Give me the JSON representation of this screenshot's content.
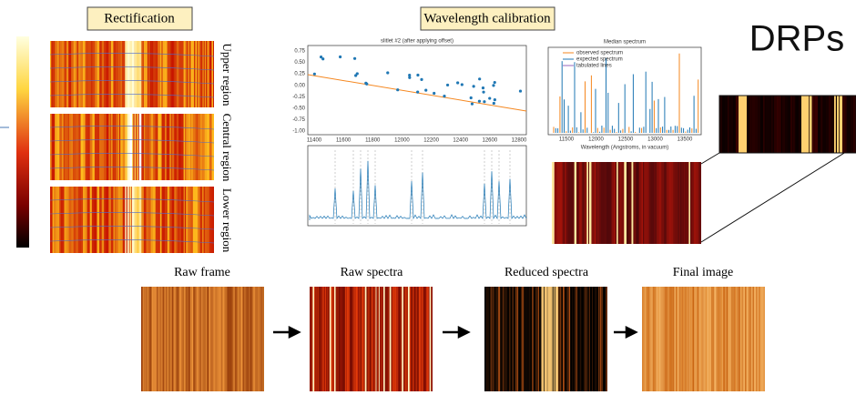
{
  "header": {
    "rectification": "Rectification",
    "wavelength_calibration": "Wavelength calibration",
    "title": "DRPs"
  },
  "rectification": {
    "regions": [
      "Upper region",
      "Central region",
      "Lower region"
    ]
  },
  "wavelength_plot": {
    "title": "slitlet #2 (after applying offset)",
    "x_ticks": [
      "11400",
      "11600",
      "11800",
      "12000",
      "12200",
      "12400",
      "12600",
      "12800"
    ],
    "y_ticks": [
      "0.75",
      "0.50",
      "0.25",
      "0.00",
      "-0.25",
      "-0.50",
      "-0.75",
      "-1.00"
    ]
  },
  "median_spectrum": {
    "title": "Median spectrum",
    "legend": [
      "observed spectrum",
      "expected spectrum",
      "tabulated lines"
    ],
    "x_label": "Wavelength (Angstroms, in vacuum)",
    "x_ticks": [
      "11500",
      "12000",
      "12500",
      "13000",
      "13500"
    ]
  },
  "pipeline": {
    "steps": [
      "Raw frame",
      "Raw spectra",
      "Reduced spectra",
      "Final image"
    ]
  }
}
